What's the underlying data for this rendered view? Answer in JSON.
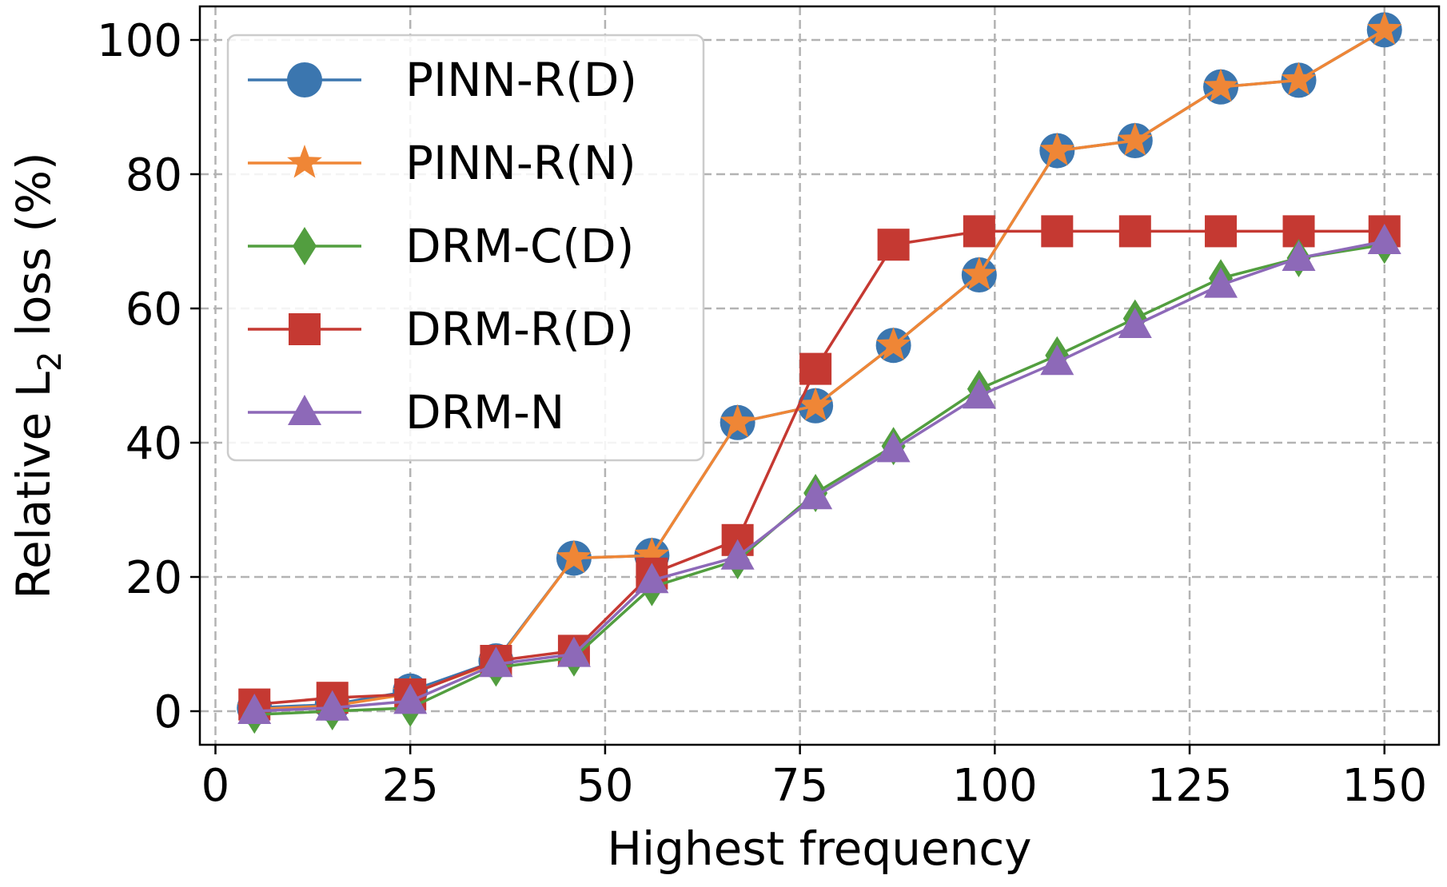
{
  "chart_data": {
    "type": "line",
    "title": "",
    "xlabel": "Highest frequency",
    "ylabel": "Relative L",
    "ylabel_sub": "2",
    "ylabel_suffix": " loss (%)",
    "xlim": [
      -2,
      157
    ],
    "ylim": [
      -5,
      105
    ],
    "x_ticks": [
      0,
      25,
      50,
      75,
      100,
      125,
      150
    ],
    "y_ticks": [
      0,
      20,
      40,
      60,
      80,
      100
    ],
    "grid": true,
    "legend_position": "top-left",
    "x": [
      5,
      15,
      25,
      36,
      46,
      56,
      67,
      77,
      87,
      98,
      108,
      118,
      129,
      139,
      150
    ],
    "series": [
      {
        "name": "PINN-R(D)",
        "color": "#3b76af",
        "marker": "circle",
        "values": [
          0.5,
          1.0,
          3.0,
          7.5,
          22.8,
          23.2,
          43.0,
          45.5,
          54.5,
          65.0,
          83.5,
          85.0,
          93.0,
          94.0,
          101.5
        ]
      },
      {
        "name": "PINN-R(N)",
        "color": "#ef8636",
        "marker": "star",
        "values": [
          0.3,
          0.8,
          2.6,
          7.3,
          22.8,
          23.2,
          43.0,
          45.5,
          54.5,
          65.0,
          83.5,
          85.0,
          93.0,
          94.0,
          101.5
        ]
      },
      {
        "name": "DRM-C(D)",
        "color": "#529e3f",
        "marker": "diamond",
        "values": [
          -0.5,
          0.0,
          0.5,
          6.5,
          8.0,
          18.5,
          22.5,
          32.5,
          39.5,
          48.0,
          53.0,
          58.5,
          64.5,
          67.5,
          69.5
        ]
      },
      {
        "name": "DRM-R(D)",
        "color": "#c53932",
        "marker": "square",
        "values": [
          1.0,
          2.0,
          2.5,
          7.5,
          9.0,
          20.5,
          25.5,
          51.0,
          69.5,
          71.5,
          71.5,
          71.5,
          71.5,
          71.5,
          71.5
        ]
      },
      {
        "name": "DRM-N",
        "color": "#8d69b8",
        "marker": "triangle",
        "values": [
          0.0,
          0.5,
          1.5,
          7.0,
          8.5,
          19.5,
          23.0,
          32.0,
          39.0,
          47.0,
          52.0,
          57.5,
          63.5,
          67.5,
          70.0
        ]
      }
    ]
  }
}
